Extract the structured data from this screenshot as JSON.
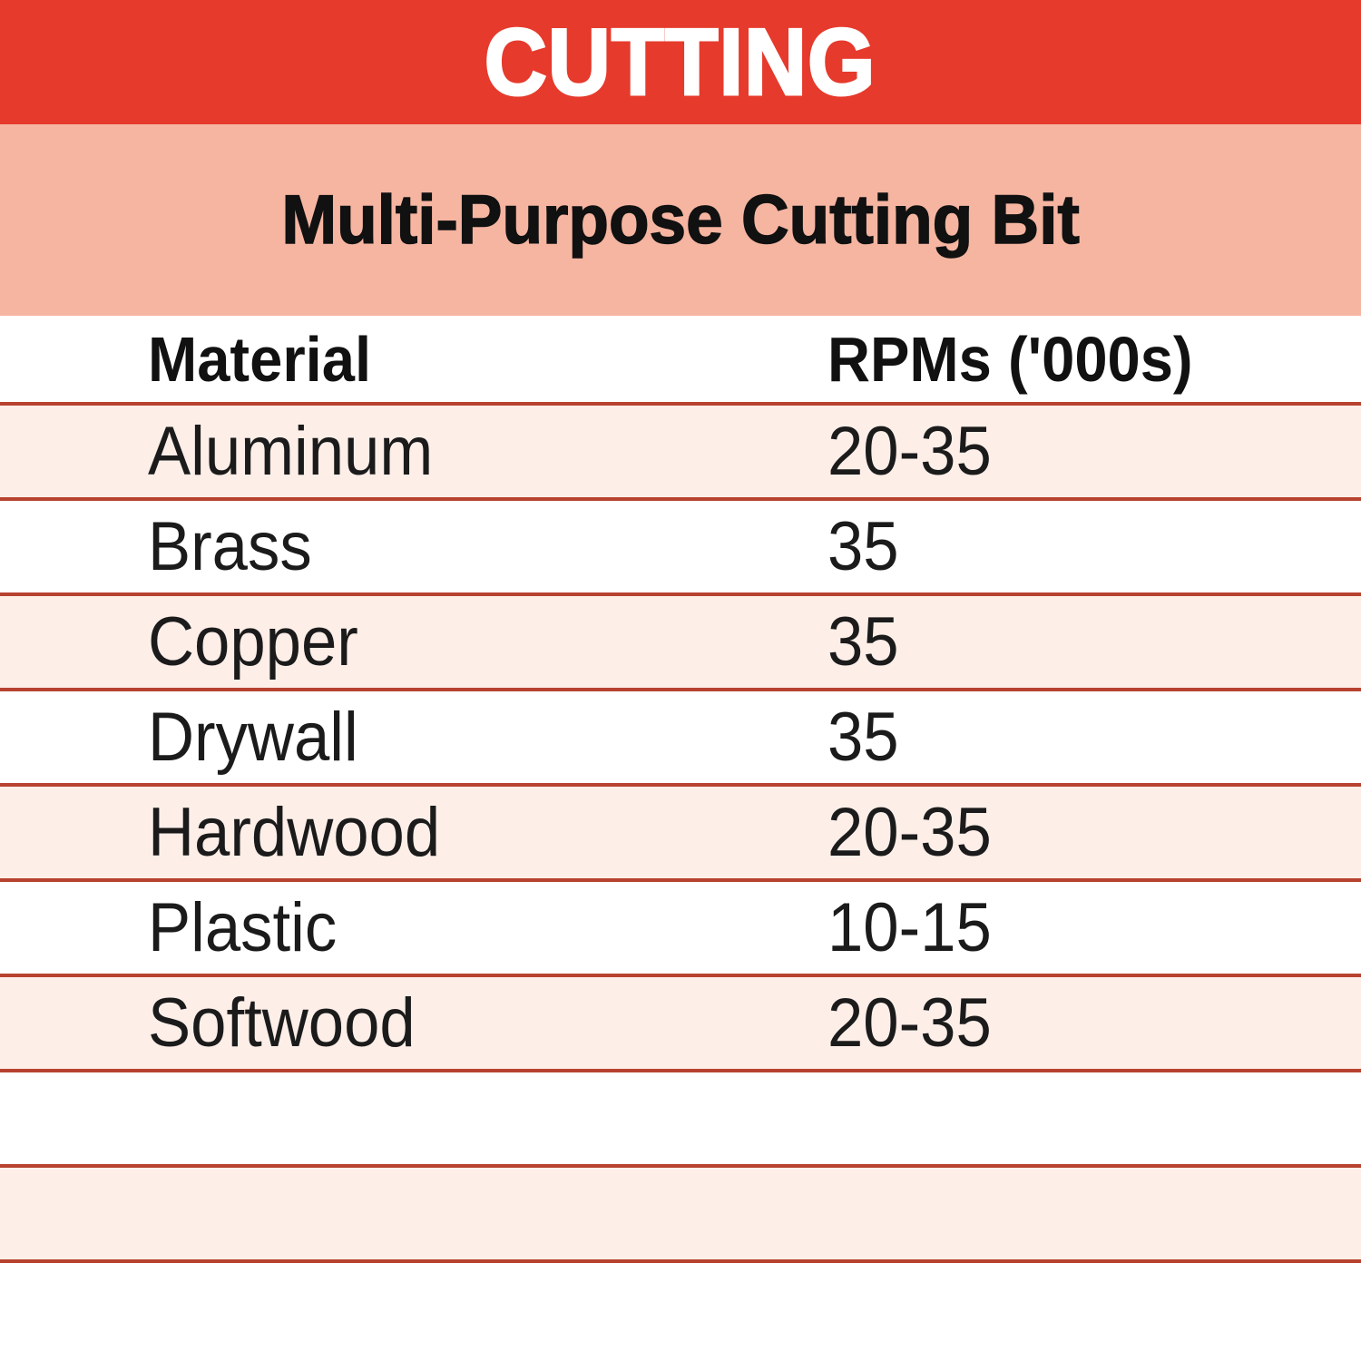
{
  "banner": {
    "title": "CUTTING",
    "bg_color": "#e63a2c",
    "text_color": "#ffffff"
  },
  "subheader": {
    "title": "Multi-Purpose Cutting Bit",
    "bg_color": "#f5b5a1",
    "text_color": "#111111"
  },
  "table": {
    "columns": {
      "material": "Material",
      "rpm": "RPMs ('000s)"
    },
    "rows": [
      {
        "material": "Aluminum",
        "rpm": "20-35"
      },
      {
        "material": "Brass",
        "rpm": "35"
      },
      {
        "material": "Copper",
        "rpm": "35"
      },
      {
        "material": "Drywall",
        "rpm": "35"
      },
      {
        "material": "Hardwood",
        "rpm": "20-35"
      },
      {
        "material": "Plastic",
        "rpm": "10-15"
      },
      {
        "material": "Softwood",
        "rpm": "20-35"
      }
    ],
    "empty_trailing_rows": 3,
    "stripe_color": "#fdeee8",
    "row_color": "#ffffff",
    "divider_color": "#b7422f"
  },
  "chart_data": {
    "type": "table",
    "title": "CUTTING",
    "subtitle": "Multi-Purpose Cutting Bit",
    "columns": [
      "Material",
      "RPMs ('000s)"
    ],
    "rows": [
      [
        "Aluminum",
        "20-35"
      ],
      [
        "Brass",
        "35"
      ],
      [
        "Copper",
        "35"
      ],
      [
        "Drywall",
        "35"
      ],
      [
        "Hardwood",
        "20-35"
      ],
      [
        "Plastic",
        "10-15"
      ],
      [
        "Softwood",
        "20-35"
      ]
    ],
    "layout": "alternating pink/white striped rows separated by brick-red horizontal rules; two left-aligned columns; three empty striped rows at bottom"
  }
}
